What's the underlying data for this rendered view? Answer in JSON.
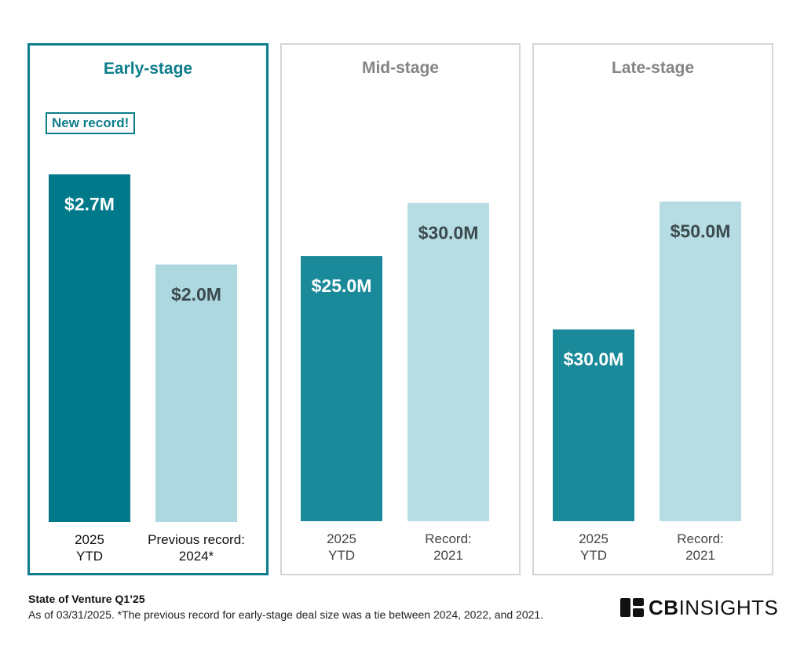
{
  "chart_data": [
    {
      "type": "bar",
      "title": "Early-stage",
      "highlighted": true,
      "annotation": "New record!",
      "categories": [
        [
          "2025",
          "YTD"
        ],
        [
          "Previous record:",
          "2024*"
        ]
      ],
      "values": [
        2.7,
        2.0
      ],
      "value_labels": [
        "$2.7M",
        "$2.0M"
      ],
      "colors": [
        "#007a8a",
        "#add8e0"
      ],
      "label_colors": [
        "#ffffff",
        "#3c4a4e"
      ],
      "unit": "$M",
      "ylim": [
        0,
        3.0
      ]
    },
    {
      "type": "bar",
      "title": "Mid-stage",
      "highlighted": false,
      "categories": [
        [
          "2025",
          "YTD"
        ],
        [
          "Record:",
          "2021"
        ]
      ],
      "values": [
        25.0,
        30.0
      ],
      "value_labels": [
        "$25.0M",
        "$30.0M"
      ],
      "colors": [
        "#1a8a9a",
        "#b5dde3"
      ],
      "label_colors": [
        "#ffffff",
        "#3c4a4e"
      ],
      "unit": "$M",
      "ylim": [
        0,
        36.4
      ]
    },
    {
      "type": "bar",
      "title": "Late-stage",
      "highlighted": false,
      "categories": [
        [
          "2025",
          "YTD"
        ],
        [
          "Record:",
          "2021"
        ]
      ],
      "values": [
        30.0,
        50.0
      ],
      "value_labels": [
        "$30.0M",
        "$50.0M"
      ],
      "colors": [
        "#1a8a9a",
        "#b5dde3"
      ],
      "label_colors": [
        "#ffffff",
        "#3c4a4e"
      ],
      "unit": "$M",
      "ylim": [
        0,
        60.4
      ]
    }
  ],
  "footer": {
    "title": "State of Venture Q1’25",
    "note": "As of 03/31/2025. *The previous record for early-stage deal size was a tie between 2024, 2022, and 2021."
  },
  "logo": {
    "bold": "CB",
    "rest": "INSIGHTS",
    "icon": "cb-insights-logo-icon"
  },
  "colors": {
    "accent": "#0e7d8c",
    "panel_border": "#d5d5d5"
  }
}
